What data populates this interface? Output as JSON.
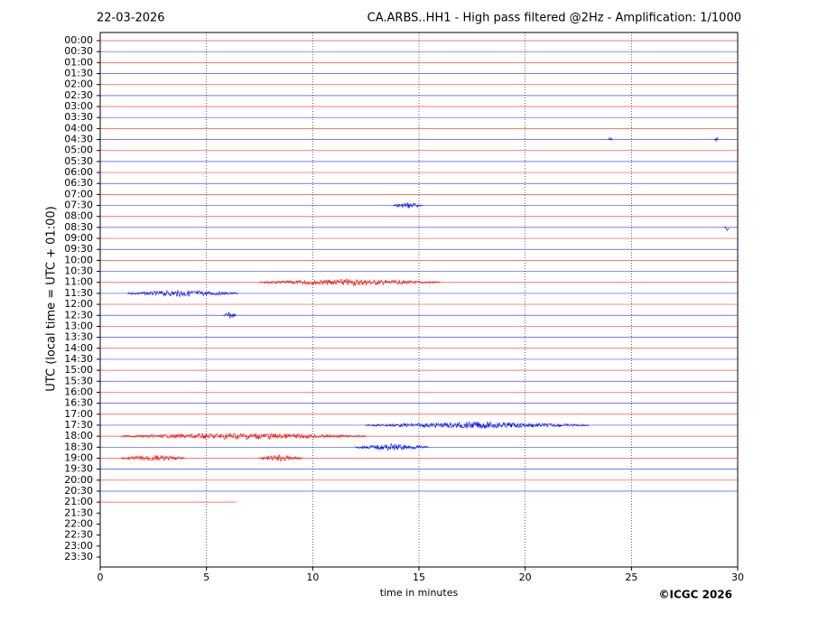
{
  "chart_data": {
    "type": "helicorder",
    "date": "22-03-2026",
    "title": "CA.ARBS..HH1 - High pass filtered @2Hz - Amplification: 1/1000",
    "xlabel": "time in minutes",
    "ylabel": "UTC (local time = UTC + 01:00)",
    "credit": "©ICGC 2026",
    "xlim": [
      0,
      30
    ],
    "xticks": [
      0,
      5,
      10,
      15,
      20,
      25,
      30
    ],
    "grid": true,
    "colors": [
      "#ff0000",
      "#0000ff"
    ],
    "rows": [
      "00:00",
      "00:30",
      "01:00",
      "01:30",
      "02:00",
      "02:30",
      "03:00",
      "03:30",
      "04:00",
      "04:30",
      "05:00",
      "05:30",
      "06:00",
      "06:30",
      "07:00",
      "07:30",
      "08:00",
      "08:30",
      "09:00",
      "09:30",
      "10:00",
      "10:30",
      "11:00",
      "11:30",
      "12:00",
      "12:30",
      "13:00",
      "13:30",
      "14:00",
      "14:30",
      "15:00",
      "15:30",
      "16:00",
      "16:30",
      "17:00",
      "17:30",
      "18:00",
      "18:30",
      "19:00",
      "19:30",
      "20:00",
      "20:30",
      "21:00",
      "21:30",
      "22:00",
      "22:30",
      "23:00",
      "23:30"
    ],
    "trace_end": [
      30,
      30,
      30,
      30,
      30,
      30,
      30,
      30,
      30,
      30,
      30,
      30,
      30,
      30,
      30,
      30,
      30,
      30,
      30,
      30,
      30,
      30,
      30,
      30,
      30,
      30,
      30,
      30,
      30,
      30,
      30,
      30,
      30,
      30,
      30,
      30,
      30,
      30,
      30,
      30,
      30,
      30,
      6.4,
      null,
      null,
      null,
      null,
      null
    ],
    "bursts": [
      {
        "row": 9,
        "start": 23.9,
        "end": 24.1
      },
      {
        "row": 9,
        "start": 28.9,
        "end": 29.1
      },
      {
        "row": 15,
        "start": 13.8,
        "end": 15.2
      },
      {
        "row": 17,
        "start": 29.4,
        "end": 29.6
      },
      {
        "row": 22,
        "start": 7.5,
        "end": 16.0
      },
      {
        "row": 23,
        "start": 1.3,
        "end": 6.5
      },
      {
        "row": 25,
        "start": 5.8,
        "end": 6.4
      },
      {
        "row": 35,
        "start": 12.5,
        "end": 23.0
      },
      {
        "row": 36,
        "start": 1.0,
        "end": 12.5
      },
      {
        "row": 37,
        "start": 12.0,
        "end": 15.5
      },
      {
        "row": 38,
        "start": 1.0,
        "end": 4.0
      },
      {
        "row": 38,
        "start": 7.5,
        "end": 9.5
      }
    ]
  }
}
